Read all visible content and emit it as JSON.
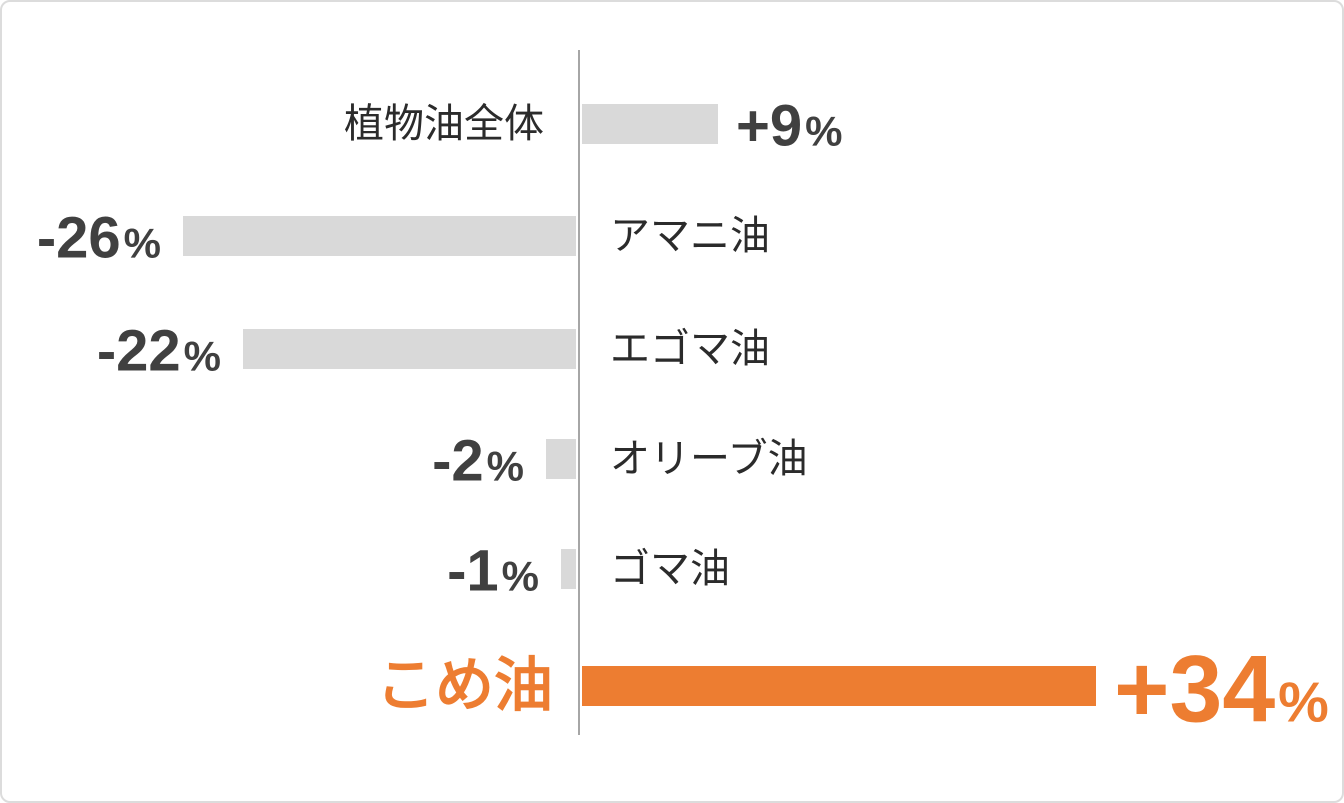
{
  "chart_data": {
    "type": "bar",
    "orientation": "horizontal-diverging",
    "title": "",
    "xlabel": "",
    "ylabel": "",
    "unit": "%",
    "baseline_value": 0,
    "grid": false,
    "legend": false,
    "xlim": [
      -38,
      50
    ],
    "categories": [
      "植物油全体",
      "アマニ油",
      "エゴマ油",
      "オリーブ油",
      "ゴマ油",
      "こめ油"
    ],
    "values": [
      9,
      -26,
      -22,
      -2,
      -1,
      34
    ],
    "rows": [
      {
        "label": "植物油全体",
        "value": 9,
        "display": "+9",
        "highlight": false
      },
      {
        "label": "アマニ油",
        "value": -26,
        "display": "-26",
        "highlight": false
      },
      {
        "label": "エゴマ油",
        "value": -22,
        "display": "-22",
        "highlight": false
      },
      {
        "label": "オリーブ油",
        "value": -2,
        "display": "-2",
        "highlight": false
      },
      {
        "label": "ゴマ油",
        "value": -1,
        "display": "-1",
        "highlight": false
      },
      {
        "label": "こめ油",
        "value": 34,
        "display": "+34",
        "highlight": true
      }
    ],
    "colors": {
      "bar_default": "#d9d9d9",
      "bar_highlight": "#ed7d31",
      "highlight_text": "#ed7d31",
      "value_text": "#404040",
      "label_text": "#2b2b2b",
      "axis_line": "#a6a6a6",
      "card_border": "#dcdcdc",
      "background": "#ffffff"
    }
  }
}
